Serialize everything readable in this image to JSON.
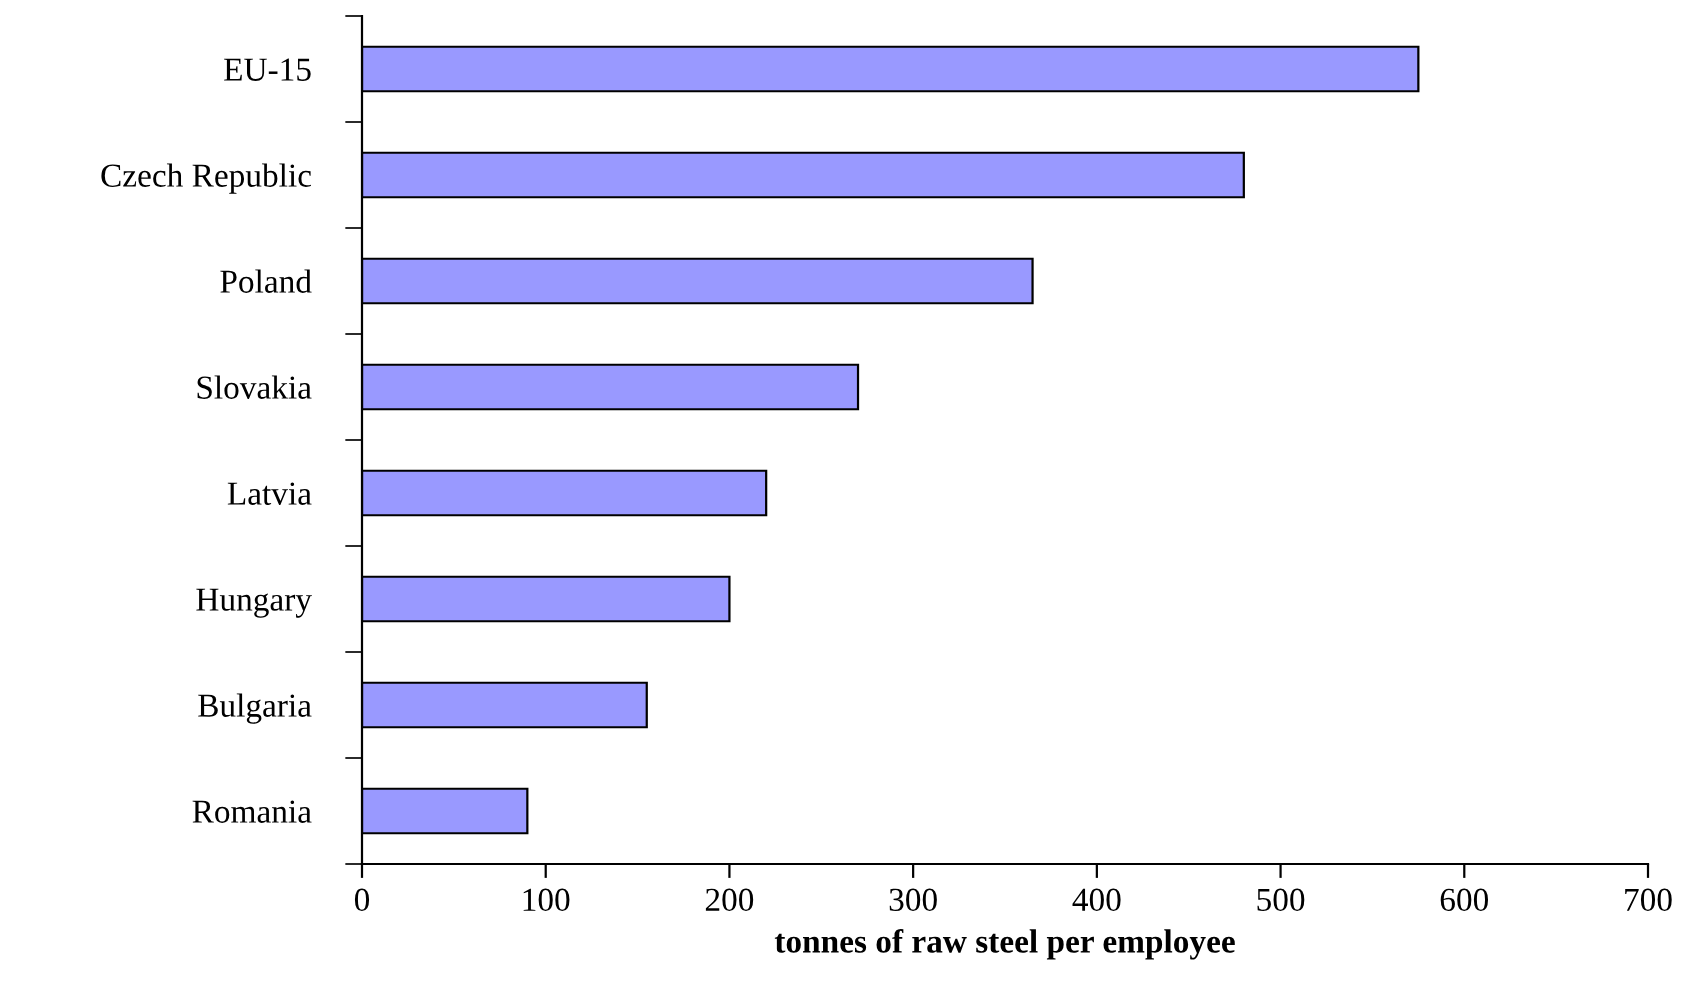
{
  "chart_data": {
    "type": "bar",
    "orientation": "horizontal",
    "xlabel": "tonnes of raw steel per employee",
    "categories": [
      "EU-15",
      "Czech Republic",
      "Poland",
      "Slovakia",
      "Latvia",
      "Hungary",
      "Bulgaria",
      "Romania"
    ],
    "values": [
      575,
      480,
      365,
      270,
      220,
      200,
      155,
      90
    ],
    "color": "#9999ff",
    "xlim": [
      0,
      700
    ],
    "xticks": [
      0,
      100,
      200,
      300,
      400,
      500,
      600,
      700
    ],
    "grid": false,
    "legend": false
  }
}
